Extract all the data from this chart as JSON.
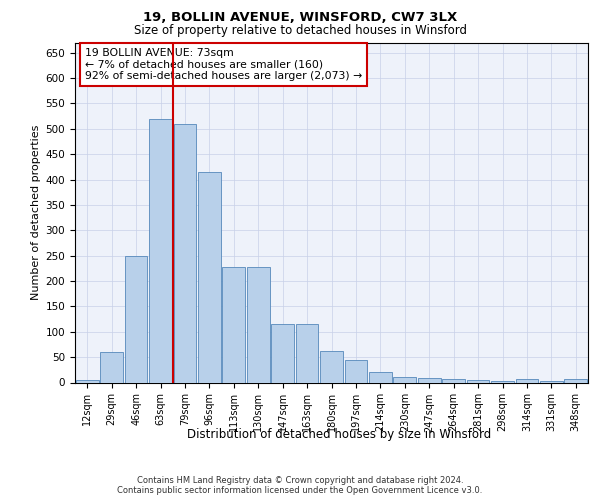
{
  "title1": "19, BOLLIN AVENUE, WINSFORD, CW7 3LX",
  "title2": "Size of property relative to detached houses in Winsford",
  "xlabel": "Distribution of detached houses by size in Winsford",
  "ylabel": "Number of detached properties",
  "bar_labels": [
    "12sqm",
    "29sqm",
    "46sqm",
    "63sqm",
    "79sqm",
    "96sqm",
    "113sqm",
    "130sqm",
    "147sqm",
    "163sqm",
    "180sqm",
    "197sqm",
    "214sqm",
    "230sqm",
    "247sqm",
    "264sqm",
    "281sqm",
    "298sqm",
    "314sqm",
    "331sqm",
    "348sqm"
  ],
  "bar_values": [
    5,
    60,
    250,
    520,
    510,
    415,
    228,
    228,
    115,
    115,
    62,
    45,
    20,
    10,
    8,
    7,
    5,
    3,
    7,
    2,
    7
  ],
  "bar_color": "#b8d0ea",
  "bar_edge_color": "#5588bb",
  "vline_x_idx": 4,
  "vline_color": "#cc0000",
  "annotation_text": "19 BOLLIN AVENUE: 73sqm\n← 7% of detached houses are smaller (160)\n92% of semi-detached houses are larger (2,073) →",
  "annotation_box_color": "#ffffff",
  "annotation_box_edge": "#cc0000",
  "ylim": [
    0,
    670
  ],
  "yticks": [
    0,
    50,
    100,
    150,
    200,
    250,
    300,
    350,
    400,
    450,
    500,
    550,
    600,
    650
  ],
  "footer1": "Contains HM Land Registry data © Crown copyright and database right 2024.",
  "footer2": "Contains public sector information licensed under the Open Government Licence v3.0.",
  "bg_color": "#eef2fa",
  "grid_color": "#c8d0e8"
}
